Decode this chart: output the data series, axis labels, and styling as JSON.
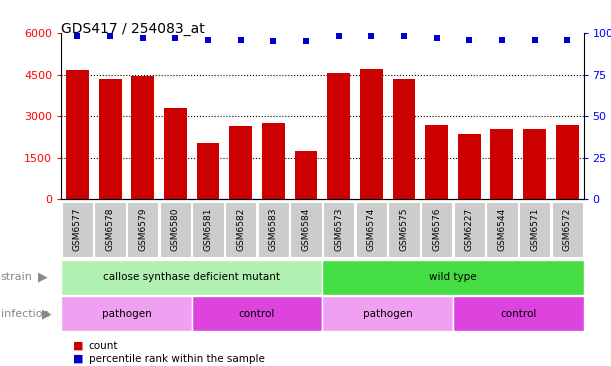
{
  "title": "GDS417 / 254083_at",
  "samples": [
    "GSM6577",
    "GSM6578",
    "GSM6579",
    "GSM6580",
    "GSM6581",
    "GSM6582",
    "GSM6583",
    "GSM6584",
    "GSM6573",
    "GSM6574",
    "GSM6575",
    "GSM6576",
    "GSM6227",
    "GSM6544",
    "GSM6571",
    "GSM6572"
  ],
  "counts": [
    4650,
    4350,
    4450,
    3300,
    2050,
    2650,
    2750,
    1750,
    4550,
    4700,
    4350,
    2700,
    2350,
    2550,
    2550,
    2700
  ],
  "percentiles": [
    98,
    98,
    97,
    97,
    96,
    96,
    95,
    95,
    98,
    98,
    98,
    97,
    96,
    96,
    96,
    96
  ],
  "bar_color": "#cc0000",
  "dot_color": "#0000cc",
  "ylim_left": [
    0,
    6000
  ],
  "ylim_right": [
    0,
    100
  ],
  "yticks_left": [
    0,
    1500,
    3000,
    4500,
    6000
  ],
  "yticks_right": [
    0,
    25,
    50,
    75,
    100
  ],
  "strain_labels": [
    {
      "text": "callose synthase deficient mutant",
      "start": 0,
      "end": 8,
      "color": "#b0f0b0"
    },
    {
      "text": "wild type",
      "start": 8,
      "end": 16,
      "color": "#44dd44"
    }
  ],
  "infection_labels": [
    {
      "text": "pathogen",
      "start": 0,
      "end": 4,
      "color": "#f0a0f0"
    },
    {
      "text": "control",
      "start": 4,
      "end": 8,
      "color": "#dd44dd"
    },
    {
      "text": "pathogen",
      "start": 8,
      "end": 12,
      "color": "#f0a0f0"
    },
    {
      "text": "control",
      "start": 12,
      "end": 16,
      "color": "#dd44dd"
    }
  ],
  "legend_count_color": "#cc0000",
  "legend_dot_color": "#0000cc",
  "background_color": "#ffffff",
  "xtick_bg_color": "#cccccc",
  "left_label_color": "#888888"
}
